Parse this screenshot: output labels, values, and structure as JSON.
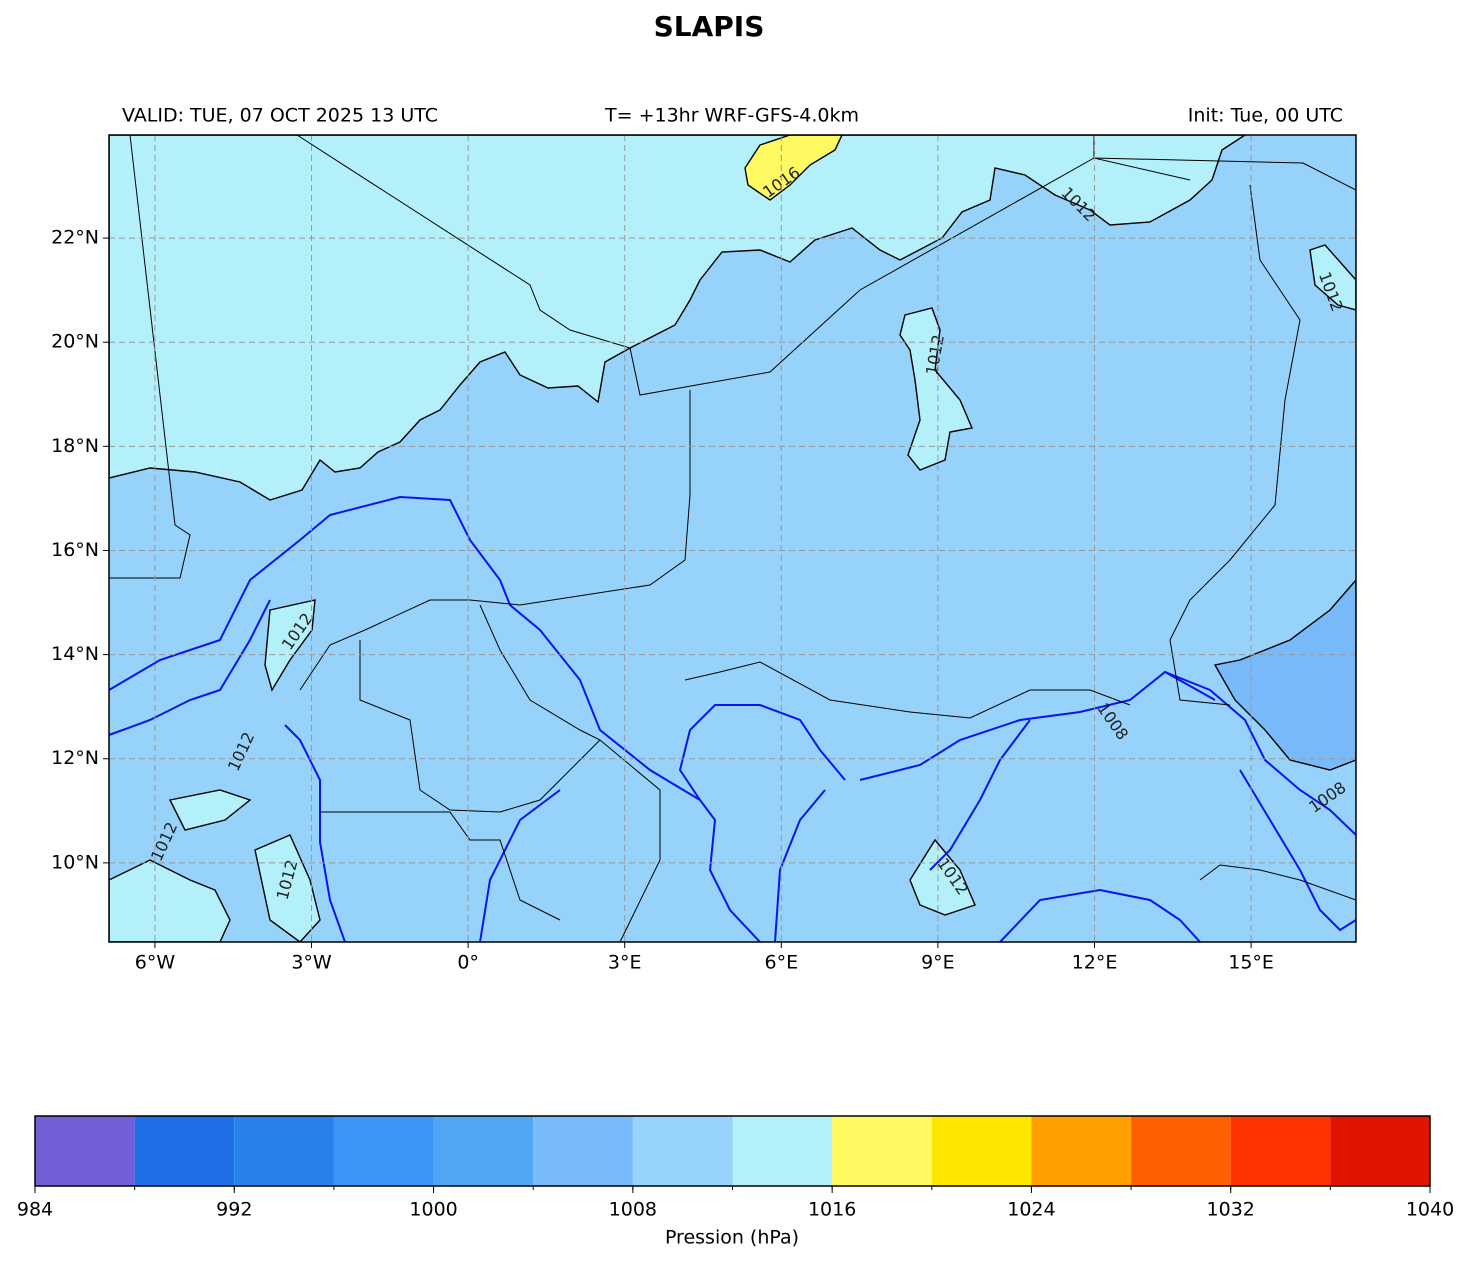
{
  "title": "SLAPIS",
  "header": {
    "valid": "VALID: TUE, 07 OCT 2025 13 UTC",
    "run": "T= +13hr WRF-GFS-4.0km",
    "init": "Init: Tue, 00 UTC"
  },
  "map": {
    "xlim": [
      -6.88,
      17.01
    ],
    "ylim": [
      8.48,
      23.98
    ],
    "lon_ticks": [
      {
        "value": -6,
        "label": "6°W"
      },
      {
        "value": -3,
        "label": "3°W"
      },
      {
        "value": 0,
        "label": "0°"
      },
      {
        "value": 3,
        "label": "3°E"
      },
      {
        "value": 6,
        "label": "6°E"
      },
      {
        "value": 9,
        "label": "9°E"
      },
      {
        "value": 12,
        "label": "12°E"
      },
      {
        "value": 15,
        "label": "15°E"
      }
    ],
    "lat_ticks": [
      {
        "value": 10,
        "label": "10°N"
      },
      {
        "value": 12,
        "label": "12°N"
      },
      {
        "value": 14,
        "label": "14°N"
      },
      {
        "value": 16,
        "label": "16°N"
      },
      {
        "value": 18,
        "label": "18°N"
      },
      {
        "value": 20,
        "label": "20°N"
      },
      {
        "value": 22,
        "label": "22°N"
      }
    ],
    "contour_labels": [
      "1016",
      "1012",
      "1012",
      "1012",
      "1012",
      "1008",
      "1012",
      "1012",
      "1008",
      "1012",
      "1012"
    ]
  },
  "colorbar": {
    "levels": [
      984,
      988,
      992,
      996,
      1000,
      1004,
      1008,
      1012,
      1016,
      1020,
      1024,
      1028,
      1032,
      1036,
      1040
    ],
    "colors": [
      "#7360d8",
      "#206ee8",
      "#2882ec",
      "#3c96f5",
      "#50a5f5",
      "#78b9fa",
      "#97d2fa",
      "#b4f0fa",
      "#fff962",
      "#ffe600",
      "#ffa000",
      "#ff5f00",
      "#ff3200",
      "#e11400"
    ],
    "ticks": [
      984,
      992,
      1000,
      1008,
      1016,
      1024,
      1032,
      1040
    ],
    "label": "Pression (hPa)"
  }
}
